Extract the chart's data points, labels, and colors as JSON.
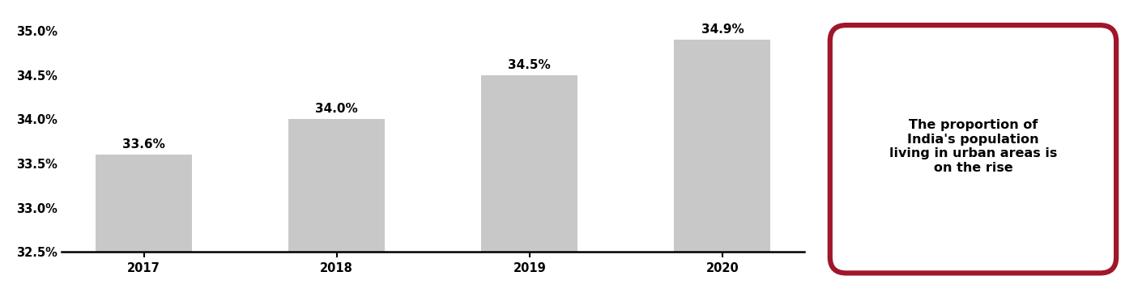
{
  "categories": [
    "2017",
    "2018",
    "2019",
    "2020"
  ],
  "values": [
    0.336,
    0.34,
    0.345,
    0.349
  ],
  "labels": [
    "33.6%",
    "34.0%",
    "34.5%",
    "34.9%"
  ],
  "bar_color": "#c8c8c8",
  "ylim": [
    0.325,
    0.3515
  ],
  "yticks": [
    0.325,
    0.33,
    0.335,
    0.34,
    0.345,
    0.35
  ],
  "ytick_labels": [
    "32.5%",
    "33.0%",
    "33.5%",
    "34.0%",
    "34.5%",
    "35.0%"
  ],
  "annotation_text": "The proportion of\nIndia's population\nliving in urban areas is\non the rise",
  "annotation_box_color": "#ffffff",
  "annotation_border_color": "#a0162a",
  "bar_width": 0.5,
  "label_fontsize": 11,
  "tick_fontsize": 10.5,
  "annotation_fontsize": 11.5
}
